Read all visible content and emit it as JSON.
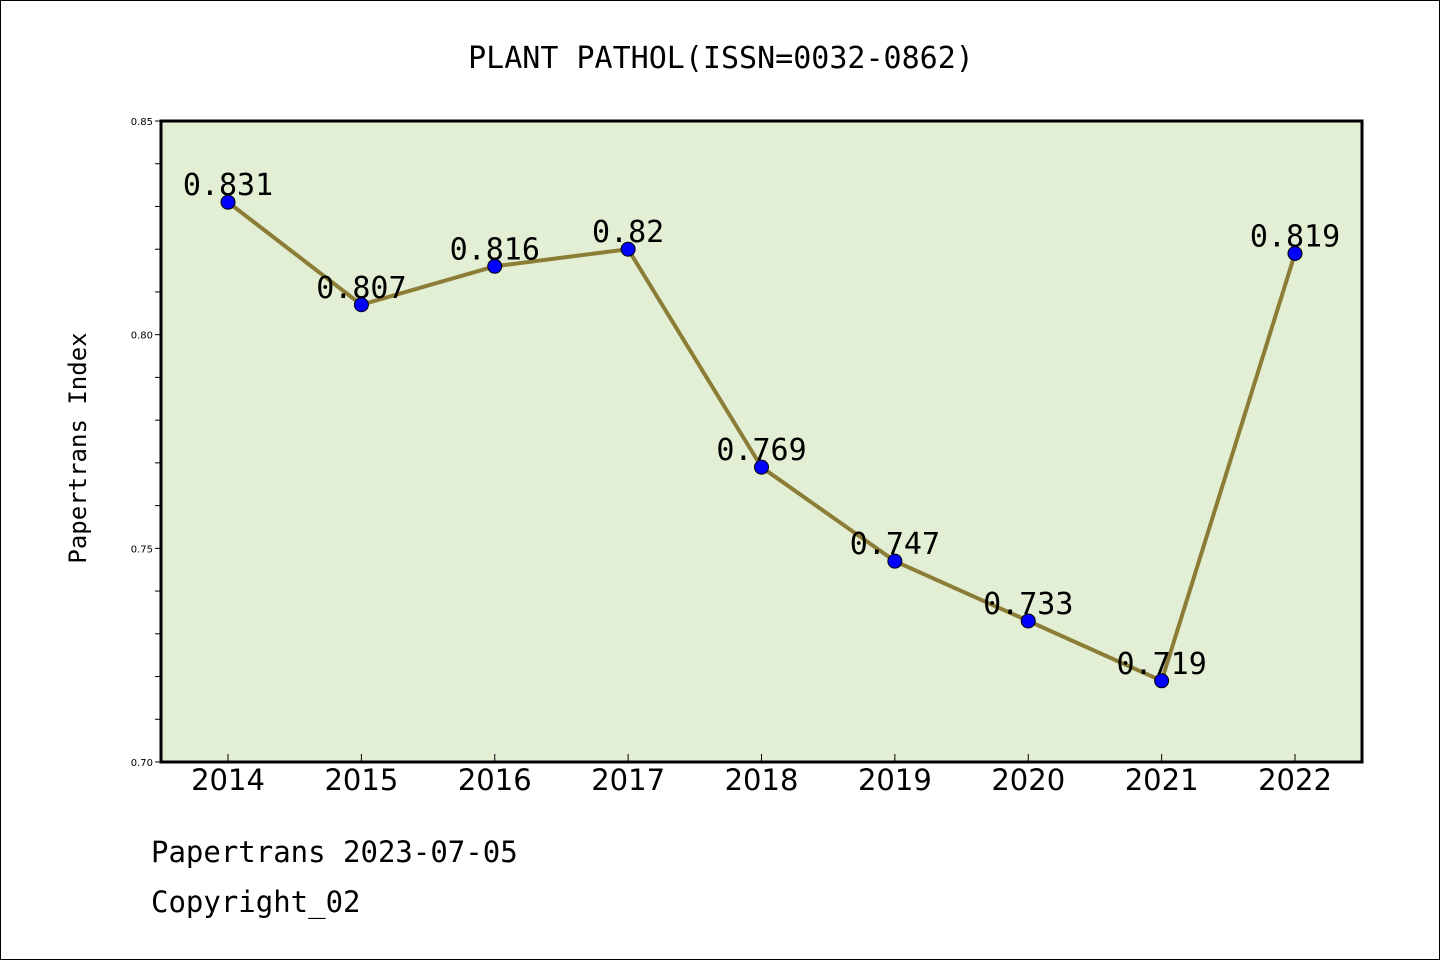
{
  "chart_data": {
    "type": "line",
    "title": "PLANT PATHOL(ISSN=0032-0862)",
    "xlabel": "",
    "ylabel": "Papertrans Index",
    "categories": [
      "2014",
      "2015",
      "2016",
      "2017",
      "2018",
      "2019",
      "2020",
      "2021",
      "2022"
    ],
    "series": [
      {
        "values": [
          0.831,
          0.807,
          0.816,
          0.82,
          0.769,
          0.747,
          0.733,
          0.719,
          0.819
        ],
        "labels": [
          "0.831",
          "0.807",
          "0.816",
          "0.82",
          "0.769",
          "0.747",
          "0.733",
          "0.719",
          "0.819"
        ]
      }
    ],
    "ylim": [
      0.7,
      0.85
    ],
    "yticks": [
      "0.70",
      "0.75",
      "0.80",
      "0.85"
    ],
    "grid": false,
    "colors": {
      "plot_background": "#e2efd5",
      "line": "#8b7d35",
      "marker": "#0000ff",
      "axis": "#000000"
    }
  },
  "footer": {
    "line1": "Papertrans 2023-07-05",
    "line2": "Copyright_02"
  }
}
